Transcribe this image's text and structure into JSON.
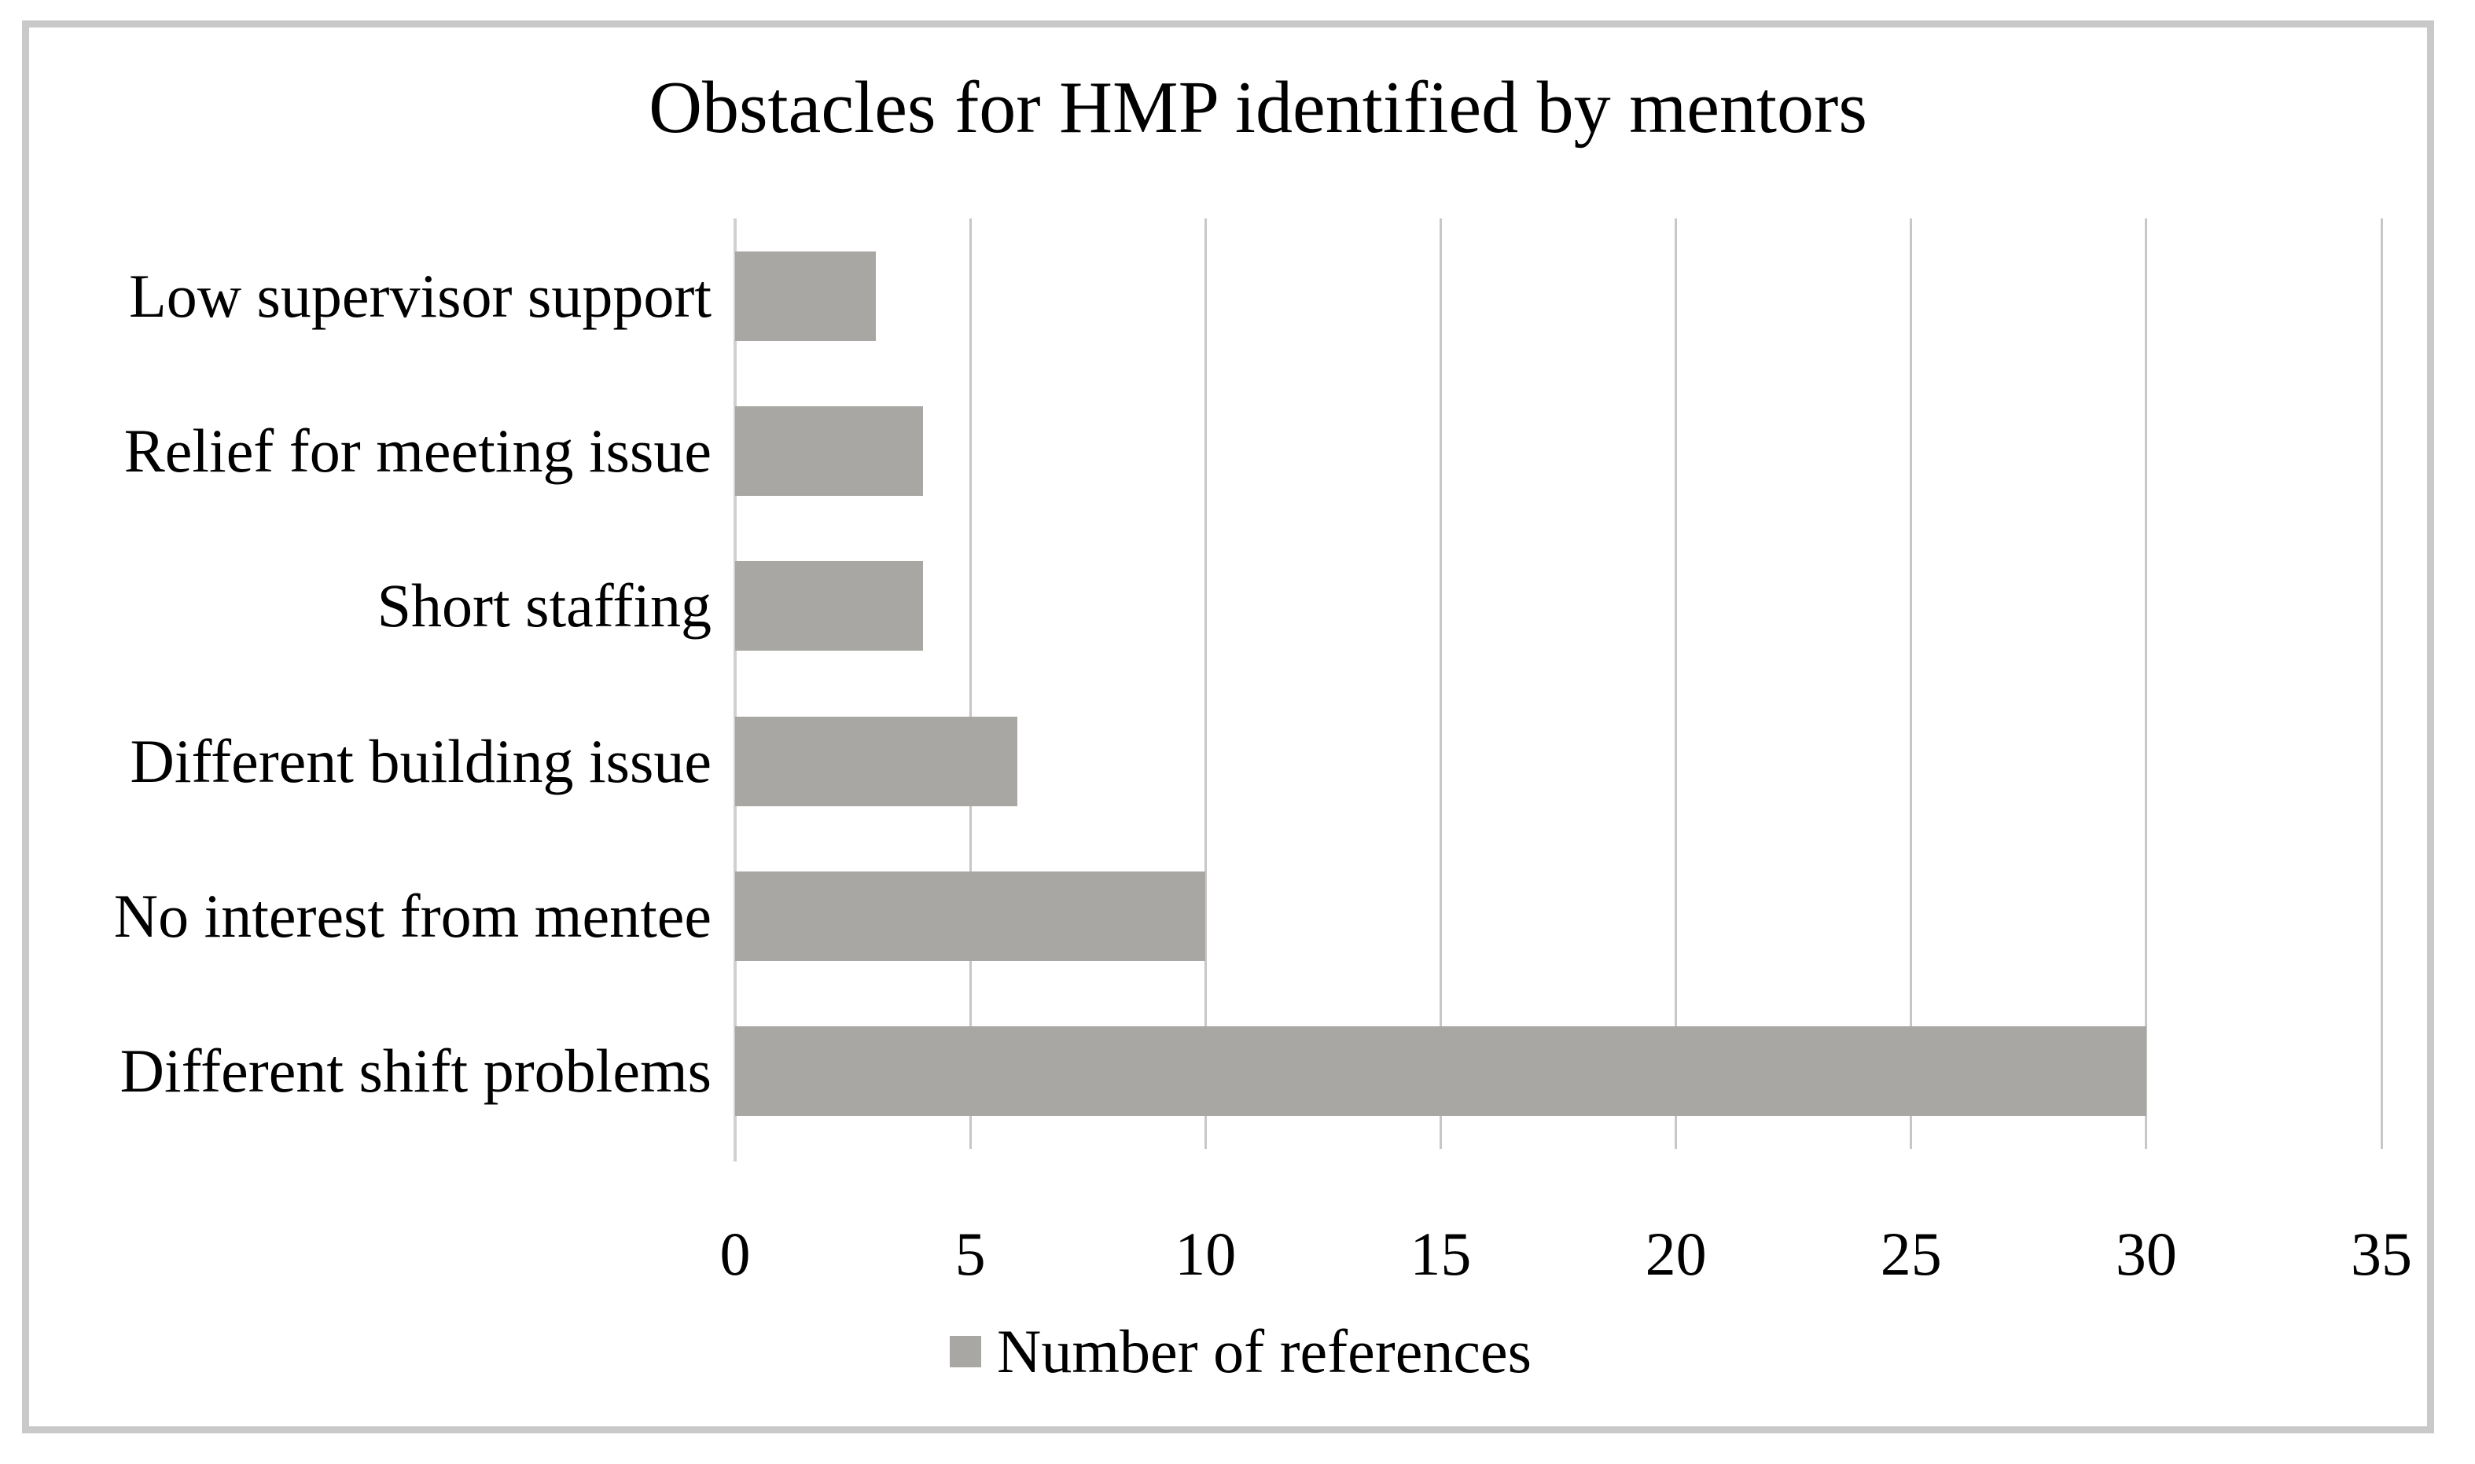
{
  "chart_data": {
    "type": "bar",
    "orientation": "horizontal",
    "title": "Obstacles for HMP identified by mentors",
    "categories": [
      "Low supervisor support",
      "Relief for meeting issue",
      "Short staffing",
      "Different building issue",
      "No interest from mentee",
      "Different shift problems"
    ],
    "values": [
      3,
      4,
      4,
      6,
      10,
      30
    ],
    "series_name": "Number of references",
    "xlabel": "",
    "ylabel": "",
    "xlim": [
      0,
      35
    ],
    "xticks": [
      0,
      5,
      10,
      15,
      20,
      25,
      30,
      35
    ],
    "grid": true,
    "legend_position": "bottom",
    "colors": {
      "bar": "#a9a7a4",
      "gridline": "#c9c7c5",
      "axis": "#d2d0ce",
      "frame_border": "#c9c9c9",
      "text": "#000000",
      "background": "#ffffff"
    }
  }
}
